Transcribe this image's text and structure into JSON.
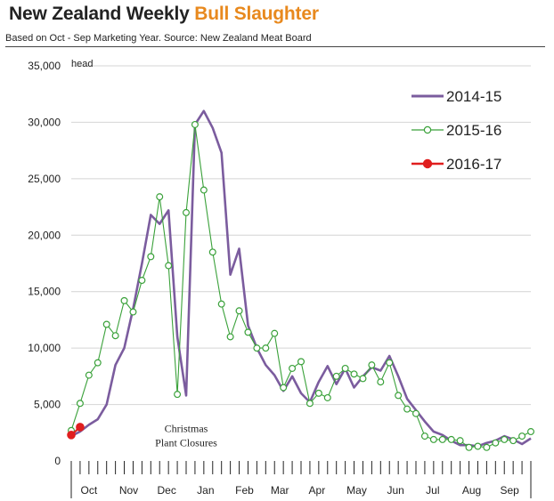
{
  "header": {
    "title_main": "New Zealand Weekly",
    "title_accent": "Bull Slaughter",
    "subtitle": "Based on Oct - Sep Marketing Year.  Source: New Zealand Meat Board"
  },
  "chart_data": {
    "type": "line",
    "y_unit": "head",
    "ylim": [
      0,
      35000
    ],
    "y_ticks": [
      0,
      5000,
      10000,
      15000,
      20000,
      25000,
      30000,
      35000
    ],
    "y_tick_labels": [
      "0",
      "5,000",
      "10,000",
      "15,000",
      "20,000",
      "25,000",
      "30,000",
      "35,000"
    ],
    "x_weeks": 52,
    "x_month_labels": [
      {
        "label": "Oct",
        "week": 2
      },
      {
        "label": "Nov",
        "week": 6.5
      },
      {
        "label": "Dec",
        "week": 10.8
      },
      {
        "label": "Jan",
        "week": 15.2
      },
      {
        "label": "Feb",
        "week": 19.6
      },
      {
        "label": "Mar",
        "week": 23.6
      },
      {
        "label": "Apr",
        "week": 27.8
      },
      {
        "label": "May",
        "week": 32.3
      },
      {
        "label": "Jun",
        "week": 36.7
      },
      {
        "label": "Jul",
        "week": 40.9
      },
      {
        "label": "Aug",
        "week": 45.3
      },
      {
        "label": "Sep",
        "week": 49.6
      }
    ],
    "grid": true,
    "legend_position": "top-right",
    "annotation": {
      "lines": [
        "Christmas",
        "Plant Closures"
      ],
      "week": 13,
      "y": 1600
    },
    "series": [
      {
        "name": "2014-15",
        "color": "#7b5c9e",
        "marker": "none",
        "values": [
          2200,
          2600,
          3200,
          3700,
          5000,
          8500,
          10000,
          13500,
          17500,
          21800,
          21000,
          22200,
          11000,
          5800,
          29800,
          31000,
          29500,
          27300,
          16500,
          18800,
          12000,
          10000,
          8500,
          7600,
          6200,
          7500,
          6000,
          5200,
          7000,
          8400,
          6800,
          8200,
          6500,
          7500,
          8300,
          8000,
          9300,
          7500,
          5500,
          4500,
          3500,
          2600,
          2300,
          1800,
          1400,
          1400,
          1300,
          1600,
          1800,
          2200,
          1900,
          1500,
          2000
        ]
      },
      {
        "name": "2015-16",
        "color": "#3aa13a",
        "marker": "open-circle",
        "values": [
          2700,
          5100,
          7600,
          8700,
          12100,
          11100,
          14200,
          13200,
          16000,
          18100,
          23400,
          17300,
          5900,
          22000,
          29800,
          24000,
          18500,
          13900,
          11000,
          13300,
          11400,
          10000,
          10000,
          11300,
          6500,
          8200,
          8800,
          5100,
          6000,
          5600,
          7500,
          8200,
          7700,
          7300,
          8500,
          7000,
          8700,
          5800,
          4600,
          4200,
          2200,
          1900,
          1900,
          1900,
          1800,
          1200,
          1300,
          1200,
          1600,
          1900,
          1800,
          2200,
          2600
        ]
      },
      {
        "name": "2016-17",
        "color": "#e01e1e",
        "marker": "filled-circle",
        "values": [
          2300,
          3000
        ]
      }
    ]
  }
}
